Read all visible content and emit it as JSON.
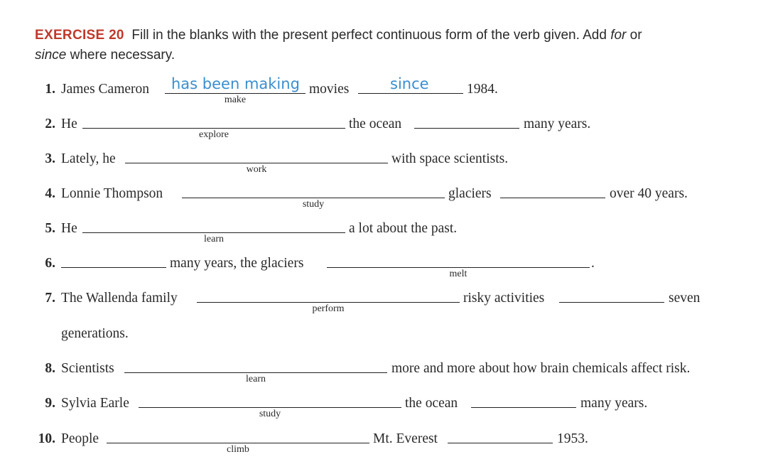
{
  "exercise": {
    "label": "EXERCISE 20",
    "instruction_1": "Fill in the blanks with the present perfect continuous form of the verb given. Add ",
    "for_word": "for",
    "instruction_2": " or",
    "since_word": "since",
    "instruction_3": " where necessary."
  },
  "items": [
    {
      "num": "1.",
      "t1": "James Cameron",
      "answer1": "has been making",
      "hint": "make",
      "t2": "movies",
      "answer2": "since",
      "t3": "1984."
    },
    {
      "num": "2.",
      "t1": "He",
      "hint": "explore",
      "t2": "the ocean",
      "t3": "many years."
    },
    {
      "num": "3.",
      "t1": "Lately, he",
      "hint": "work",
      "t2": "with space scientists."
    },
    {
      "num": "4.",
      "t1": "Lonnie Thompson",
      "hint": "study",
      "t2": "glaciers",
      "t3": "over 40 years."
    },
    {
      "num": "5.",
      "t1": "He",
      "hint": "learn",
      "t2": "a lot about the past."
    },
    {
      "num": "6.",
      "t1": "many years, the glaciers",
      "hint": "melt",
      "t2": "."
    },
    {
      "num": "7.",
      "t1": "The Wallenda family",
      "hint": "perform",
      "t2": "risky activities",
      "t3": "seven",
      "t4": "generations."
    },
    {
      "num": "8.",
      "t1": "Scientists",
      "hint": "learn",
      "t2": "more and more about how brain chemicals affect risk."
    },
    {
      "num": "9.",
      "t1": "Sylvia Earle",
      "hint": "study",
      "t2": "the ocean",
      "t3": "many years."
    },
    {
      "num": "10.",
      "t1": "People",
      "hint": "climb",
      "t2": "Mt. Everest",
      "t3": "1953."
    }
  ]
}
